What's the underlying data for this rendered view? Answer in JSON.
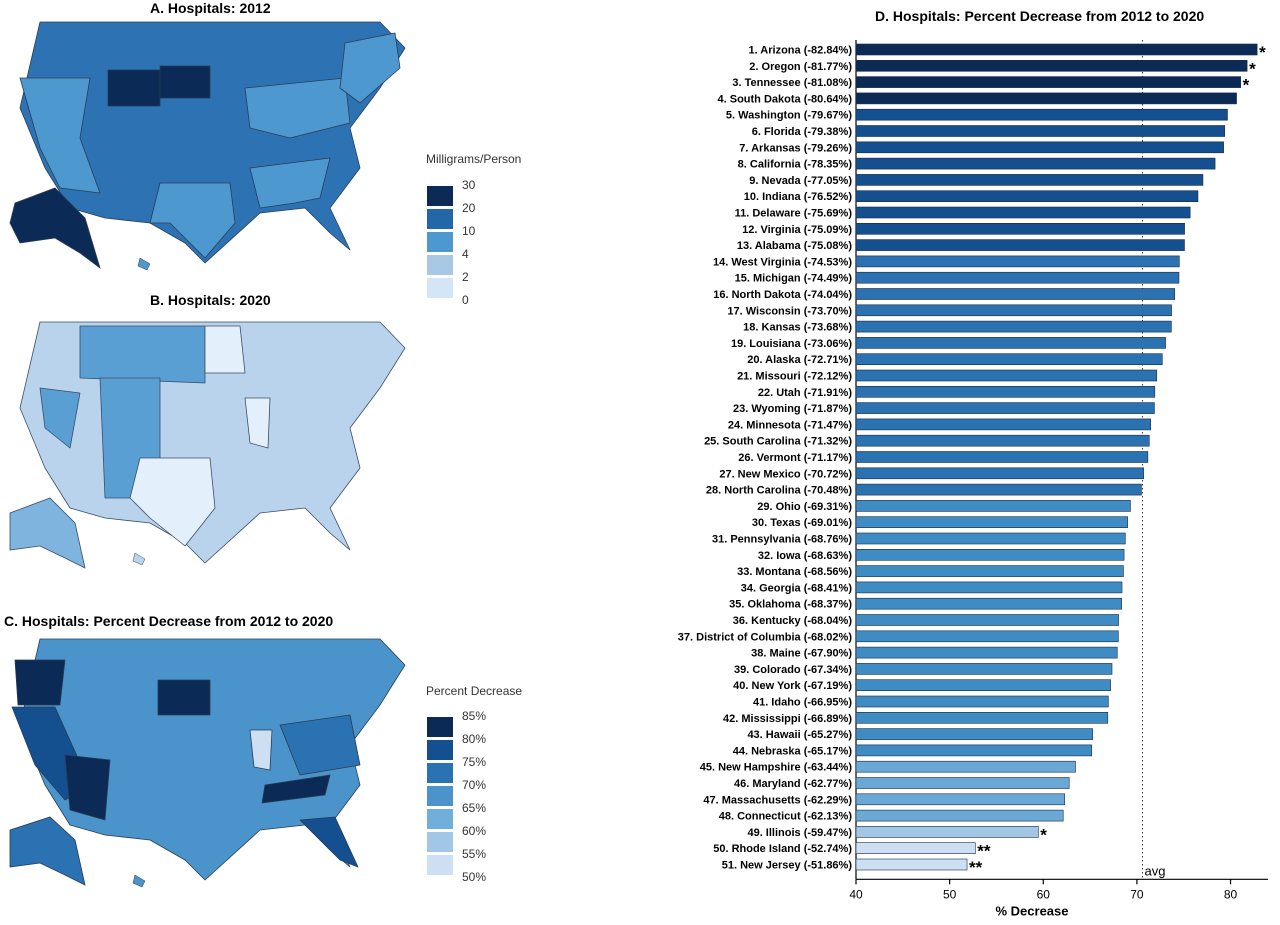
{
  "panels": {
    "a_title": "A. Hospitals:  2012",
    "b_title": "B. Hospitals:  2020",
    "c_title": "C. Hospitals:  Percent Decrease from 2012 to 2020"
  },
  "legend_mg": {
    "title": "Milligrams/Person",
    "labels": [
      "30",
      "20",
      "10",
      "4",
      "2",
      "0"
    ],
    "colors": [
      "#0b2a55",
      "#2267a8",
      "#4d98cf",
      "#a9c8e6",
      "#d3e5f6",
      "#ffffff"
    ]
  },
  "legend_pct": {
    "title": "Percent Decrease",
    "labels": [
      "85%",
      "80%",
      "75%",
      "70%",
      "65%",
      "60%",
      "55%",
      "50%"
    ],
    "colors": [
      "#0b2a55",
      "#144f8f",
      "#2a72b1",
      "#4b94cb",
      "#72aedb",
      "#a2c7e6",
      "#cde0f3"
    ]
  },
  "chart_data": {
    "type": "bar",
    "orientation": "horizontal",
    "title": "D. Hospitals: Percent Decrease from 2012 to 2020",
    "xlabel": "% Decrease",
    "xlim": [
      40,
      84
    ],
    "xticks": [
      "40",
      "50",
      "60",
      "70",
      "80"
    ],
    "avg_value": 70.6,
    "avg_label": "avg",
    "categories": [
      "1. Arizona (-82.84%)",
      "2. Oregon (-81.77%)",
      "3. Tennessee (-81.08%)",
      "4. South Dakota (-80.64%)",
      "5. Washington (-79.67%)",
      "6. Florida (-79.38%)",
      "7. Arkansas (-79.26%)",
      "8. California (-78.35%)",
      "9. Nevada (-77.05%)",
      "10. Indiana (-76.52%)",
      "11. Delaware (-75.69%)",
      "12. Virginia (-75.09%)",
      "13. Alabama (-75.08%)",
      "14. West Virginia (-74.53%)",
      "15. Michigan (-74.49%)",
      "16. North Dakota (-74.04%)",
      "17. Wisconsin (-73.70%)",
      "18. Kansas (-73.68%)",
      "19. Louisiana (-73.06%)",
      "20. Alaska (-72.71%)",
      "21. Missouri (-72.12%)",
      "22. Utah (-71.91%)",
      "23. Wyoming (-71.87%)",
      "24. Minnesota (-71.47%)",
      "25. South Carolina (-71.32%)",
      "26. Vermont (-71.17%)",
      "27. New Mexico (-70.72%)",
      "28. North Carolina (-70.48%)",
      "29. Ohio (-69.31%)",
      "30. Texas (-69.01%)",
      "31. Pennsylvania (-68.76%)",
      "32. Iowa (-68.63%)",
      "33. Montana (-68.56%)",
      "34. Georgia (-68.41%)",
      "35. Oklahoma (-68.37%)",
      "36. Kentucky (-68.04%)",
      "37. District of Columbia (-68.02%)",
      "38. Maine (-67.90%)",
      "39. Colorado (-67.34%)",
      "40. New York (-67.19%)",
      "41. Idaho (-66.95%)",
      "42. Mississippi (-66.89%)",
      "43. Hawaii (-65.27%)",
      "44. Nebraska (-65.17%)",
      "45. New Hampshire (-63.44%)",
      "46. Maryland (-62.77%)",
      "47. Massachusetts (-62.29%)",
      "48. Connecticut (-62.13%)",
      "49. Illinois (-59.47%)",
      "50. Rhode Island (-52.74%)",
      "51. New Jersey (-51.86%)"
    ],
    "values": [
      82.84,
      81.77,
      81.08,
      80.64,
      79.67,
      79.38,
      79.26,
      78.35,
      77.05,
      76.52,
      75.69,
      75.09,
      75.08,
      74.53,
      74.49,
      74.04,
      73.7,
      73.68,
      73.06,
      72.71,
      72.12,
      71.91,
      71.87,
      71.47,
      71.32,
      71.17,
      70.72,
      70.48,
      69.31,
      69.01,
      68.76,
      68.63,
      68.56,
      68.41,
      68.37,
      68.04,
      68.02,
      67.9,
      67.34,
      67.19,
      66.95,
      66.89,
      65.27,
      65.17,
      63.44,
      62.77,
      62.29,
      62.13,
      59.47,
      52.74,
      51.86
    ],
    "significance": [
      "*",
      "*",
      "*",
      "",
      "",
      "",
      "",
      "",
      "",
      "",
      "",
      "",
      "",
      "",
      "",
      "",
      "",
      "",
      "",
      "",
      "",
      "",
      "",
      "",
      "",
      "",
      "",
      "",
      "",
      "",
      "",
      "",
      "",
      "",
      "",
      "",
      "",
      "",
      "",
      "",
      "",
      "",
      "",
      "",
      "",
      "",
      "",
      "",
      "*",
      "**",
      "**"
    ],
    "colors": {
      "c85": "#0b2a55",
      "c80": "#144f8f",
      "c75": "#2a72b1",
      "c70": "#3f8cc5",
      "c65": "#6aa8d6",
      "c60": "#a2c7e6",
      "c55": "#cde0f3",
      "c50": "#e6f0fa"
    }
  }
}
